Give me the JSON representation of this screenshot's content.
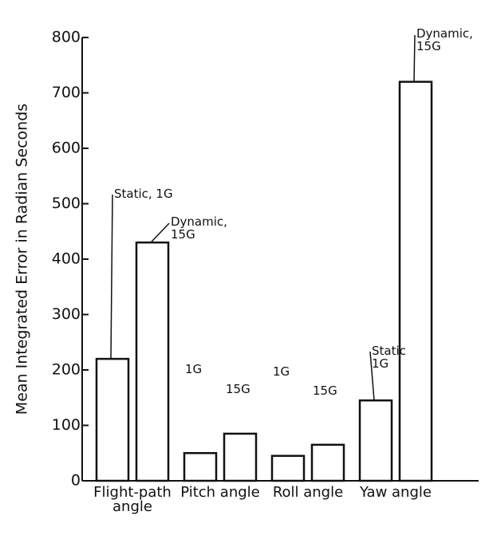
{
  "chart_data": {
    "type": "bar",
    "ylabel": "Mean Integrated Error in Radian Seconds",
    "categories": [
      "Flight-path angle",
      "Pitch angle",
      "Roll angle",
      "Yaw angle"
    ],
    "series": [
      {
        "color": "#ffffff",
        "values": [
          220,
          50,
          45,
          145
        ],
        "labels": [
          "Static, 1G",
          "1G",
          "1G",
          "Static 1G"
        ]
      },
      {
        "color": "#ffffff",
        "values": [
          430,
          85,
          65,
          720
        ],
        "labels": [
          "Dynamic, 15G",
          "15G",
          "15G",
          "Dynamic, 15G"
        ]
      }
    ],
    "ylim": [
      0,
      800
    ],
    "yticks": [
      0,
      100,
      200,
      300,
      400,
      500,
      600,
      700,
      800
    ],
    "grid": false
  }
}
